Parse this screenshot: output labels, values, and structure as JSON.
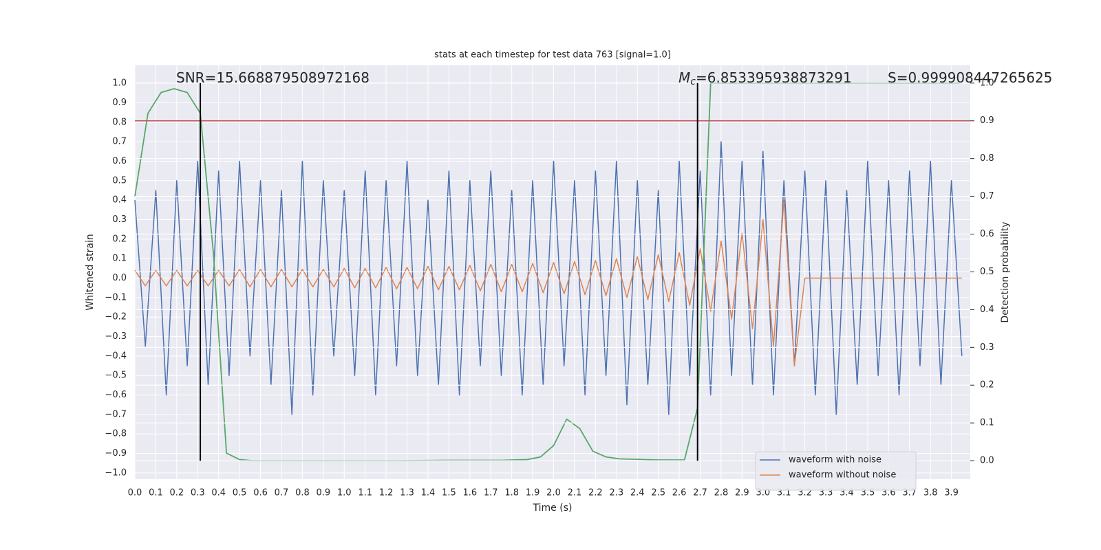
{
  "chart_data": {
    "type": "line",
    "title": "stats at each timestep for test data 763 [signal=1.0]",
    "x_label": "Time (s)",
    "y_label": "Whitened strain",
    "y2_label": "Detection probability",
    "annotations": [
      {
        "text": "SNR=15.668879508972168"
      },
      {
        "symbol": "M",
        "subscript": "c",
        "text": "=6.853395938873291"
      },
      {
        "text": "S=0.999908447265625"
      }
    ],
    "xlim": [
      0,
      3.99
    ],
    "ylim": [
      -1.032,
      1.092
    ],
    "y2lim": [
      -0.049,
      1.047
    ],
    "xticks": [
      {
        "value": 0,
        "label": "0.0"
      },
      {
        "value": 0.1,
        "label": "0.1"
      },
      {
        "value": 0.2,
        "label": "0.2"
      },
      {
        "value": 0.3,
        "label": "0.3"
      },
      {
        "value": 0.4,
        "label": "0.4"
      },
      {
        "value": 0.5,
        "label": "0.5"
      },
      {
        "value": 0.6,
        "label": "0.6"
      },
      {
        "value": 0.7,
        "label": "0.7"
      },
      {
        "value": 0.8,
        "label": "0.8"
      },
      {
        "value": 0.9,
        "label": "0.9"
      },
      {
        "value": 1,
        "label": "1.0"
      },
      {
        "value": 1.1,
        "label": "1.1"
      },
      {
        "value": 1.2,
        "label": "1.2"
      },
      {
        "value": 1.3,
        "label": "1.3"
      },
      {
        "value": 1.4,
        "label": "1.4"
      },
      {
        "value": 1.5,
        "label": "1.5"
      },
      {
        "value": 1.6,
        "label": "1.6"
      },
      {
        "value": 1.7,
        "label": "1.7"
      },
      {
        "value": 1.8,
        "label": "1.8"
      },
      {
        "value": 1.9,
        "label": "1.9"
      },
      {
        "value": 2,
        "label": "2.0"
      },
      {
        "value": 2.1,
        "label": "2.1"
      },
      {
        "value": 2.2,
        "label": "2.2"
      },
      {
        "value": 2.3,
        "label": "2.3"
      },
      {
        "value": 2.4,
        "label": "2.4"
      },
      {
        "value": 2.5,
        "label": "2.5"
      },
      {
        "value": 2.6,
        "label": "2.6"
      },
      {
        "value": 2.7,
        "label": "2.7"
      },
      {
        "value": 2.8,
        "label": "2.8"
      },
      {
        "value": 2.9,
        "label": "2.9"
      },
      {
        "value": 3,
        "label": "3.0"
      },
      {
        "value": 3.1,
        "label": "3.1"
      },
      {
        "value": 3.2,
        "label": "3.2"
      },
      {
        "value": 3.3,
        "label": "3.3"
      },
      {
        "value": 3.4,
        "label": "3.4"
      },
      {
        "value": 3.5,
        "label": "3.5"
      },
      {
        "value": 3.6,
        "label": "3.6"
      },
      {
        "value": 3.7,
        "label": "3.7"
      },
      {
        "value": 3.8,
        "label": "3.8"
      },
      {
        "value": 3.9,
        "label": "3.9"
      }
    ],
    "yticks": [
      {
        "value": -1,
        "label": "−1.0"
      },
      {
        "value": -0.9,
        "label": "−0.9"
      },
      {
        "value": -0.8,
        "label": "−0.8"
      },
      {
        "value": -0.7,
        "label": "−0.7"
      },
      {
        "value": -0.6,
        "label": "−0.6"
      },
      {
        "value": -0.5,
        "label": "−0.5"
      },
      {
        "value": -0.4,
        "label": "−0.4"
      },
      {
        "value": -0.3,
        "label": "−0.3"
      },
      {
        "value": -0.2,
        "label": "−0.2"
      },
      {
        "value": -0.1,
        "label": "−0.1"
      },
      {
        "value": 0,
        "label": "0.0"
      },
      {
        "value": 0.1,
        "label": "0.1"
      },
      {
        "value": 0.2,
        "label": "0.2"
      },
      {
        "value": 0.3,
        "label": "0.3"
      },
      {
        "value": 0.4,
        "label": "0.4"
      },
      {
        "value": 0.5,
        "label": "0.5"
      },
      {
        "value": 0.6,
        "label": "0.6"
      },
      {
        "value": 0.7,
        "label": "0.7"
      },
      {
        "value": 0.8,
        "label": "0.8"
      },
      {
        "value": 0.9,
        "label": "0.9"
      },
      {
        "value": 1,
        "label": "1.0"
      }
    ],
    "y2ticks": [
      {
        "value": 0,
        "label": "0.0"
      },
      {
        "value": 0.1,
        "label": "0.1"
      },
      {
        "value": 0.2,
        "label": "0.2"
      },
      {
        "value": 0.3,
        "label": "0.3"
      },
      {
        "value": 0.4,
        "label": "0.4"
      },
      {
        "value": 0.5,
        "label": "0.5"
      },
      {
        "value": 0.6,
        "label": "0.6"
      },
      {
        "value": 0.7,
        "label": "0.7"
      },
      {
        "value": 0.8,
        "label": "0.8"
      },
      {
        "value": 0.9,
        "label": "0.9"
      },
      {
        "value": 1,
        "label": "1.0"
      }
    ],
    "grid": true,
    "legend": "lower right",
    "x": [
      0,
      0.05,
      0.1,
      0.15,
      0.2,
      0.25,
      0.3,
      0.35,
      0.4,
      0.45,
      0.5,
      0.55,
      0.6,
      0.65,
      0.7,
      0.75,
      0.8,
      0.85,
      0.9,
      0.95,
      1,
      1.05,
      1.1,
      1.15,
      1.2,
      1.25,
      1.3,
      1.35,
      1.4,
      1.45,
      1.5,
      1.55,
      1.6,
      1.65,
      1.7,
      1.75,
      1.8,
      1.85,
      1.9,
      1.95,
      2,
      2.05,
      2.1,
      2.15,
      2.2,
      2.25,
      2.3,
      2.35,
      2.4,
      2.45,
      2.5,
      2.55,
      2.6,
      2.65,
      2.7,
      2.75,
      2.8,
      2.85,
      2.9,
      2.95,
      3,
      3.05,
      3.1,
      3.15,
      3.2,
      3.25,
      3.3,
      3.35,
      3.4,
      3.45,
      3.5,
      3.55,
      3.6,
      3.65,
      3.7,
      3.75,
      3.8,
      3.85,
      3.9,
      3.95
    ],
    "series": [
      {
        "name": "waveform with noise",
        "color": "#4c72b0",
        "values": [
          0.4,
          -0.35,
          0.45,
          -0.6,
          0.5,
          -0.45,
          0.6,
          -0.55,
          0.55,
          -0.5,
          0.6,
          -0.4,
          0.5,
          -0.55,
          0.45,
          -0.7,
          0.6,
          -0.6,
          0.5,
          -0.4,
          0.45,
          -0.5,
          0.55,
          -0.6,
          0.5,
          -0.45,
          0.6,
          -0.5,
          0.4,
          -0.55,
          0.55,
          -0.6,
          0.5,
          -0.45,
          0.55,
          -0.5,
          0.45,
          -0.6,
          0.5,
          -0.55,
          0.6,
          -0.45,
          0.5,
          -0.6,
          0.55,
          -0.5,
          0.6,
          -0.65,
          0.5,
          -0.55,
          0.45,
          -0.7,
          0.6,
          -0.5,
          0.55,
          -0.6,
          0.7,
          -0.5,
          0.6,
          -0.55,
          0.65,
          -0.6,
          0.5,
          -0.45,
          0.55,
          -0.6,
          0.5,
          -0.7,
          0.45,
          -0.55,
          0.6,
          -0.5,
          0.5,
          -0.6,
          0.55,
          -0.45,
          0.6,
          -0.55,
          0.5,
          -0.4
        ]
      },
      {
        "name": "waveform without noise",
        "color": "#dd8452",
        "values": [
          0.04,
          -0.04,
          0.04,
          -0.04,
          0.04,
          -0.04,
          0.04,
          -0.04,
          0.04,
          -0.04,
          0.045,
          -0.045,
          0.045,
          -0.045,
          0.045,
          -0.045,
          0.045,
          -0.045,
          0.045,
          -0.045,
          0.05,
          -0.05,
          0.05,
          -0.05,
          0.055,
          -0.055,
          0.055,
          -0.055,
          0.06,
          -0.06,
          0.06,
          -0.06,
          0.065,
          -0.065,
          0.07,
          -0.07,
          0.07,
          -0.07,
          0.075,
          -0.075,
          0.08,
          -0.08,
          0.085,
          -0.085,
          0.09,
          -0.09,
          0.1,
          -0.1,
          0.11,
          -0.11,
          0.12,
          -0.12,
          0.13,
          -0.14,
          0.15,
          -0.17,
          0.19,
          -0.21,
          0.23,
          -0.26,
          0.3,
          -0.35,
          0.4,
          -0.45,
          0,
          0,
          0,
          0,
          0,
          0,
          0,
          0,
          0,
          0,
          0,
          0,
          0,
          0,
          0,
          0
        ]
      },
      {
        "color": "#55a868",
        "axis": "y2",
        "x": [
          0,
          0.0625,
          0.125,
          0.1875,
          0.25,
          0.3125,
          0.375,
          0.4375,
          0.5,
          0.5625,
          0.75,
          1.0,
          1.25,
          1.5,
          1.75,
          1.875,
          1.9375,
          2.0,
          2.0625,
          2.125,
          2.1875,
          2.25,
          2.3125,
          2.5,
          2.625,
          2.6875,
          2.75,
          3.0,
          3.5,
          3.9375
        ],
        "values": [
          0.7,
          0.92,
          0.975,
          0.985,
          0.975,
          0.92,
          0.55,
          0.02,
          0.003,
          0.0,
          0.0,
          0.0,
          0.0,
          0.001,
          0.001,
          0.003,
          0.01,
          0.04,
          0.11,
          0.085,
          0.025,
          0.01,
          0.005,
          0.002,
          0.002,
          0.14,
          1.0,
          1.0,
          1.0,
          1.0
        ]
      }
    ],
    "threshold": {
      "value": 0.9,
      "axis": "y2",
      "color": "#c44e52"
    },
    "markers": {
      "x": [
        0.3125,
        2.6875
      ],
      "from": 0,
      "to": 1,
      "axis": "y2",
      "color": "#000000"
    }
  }
}
